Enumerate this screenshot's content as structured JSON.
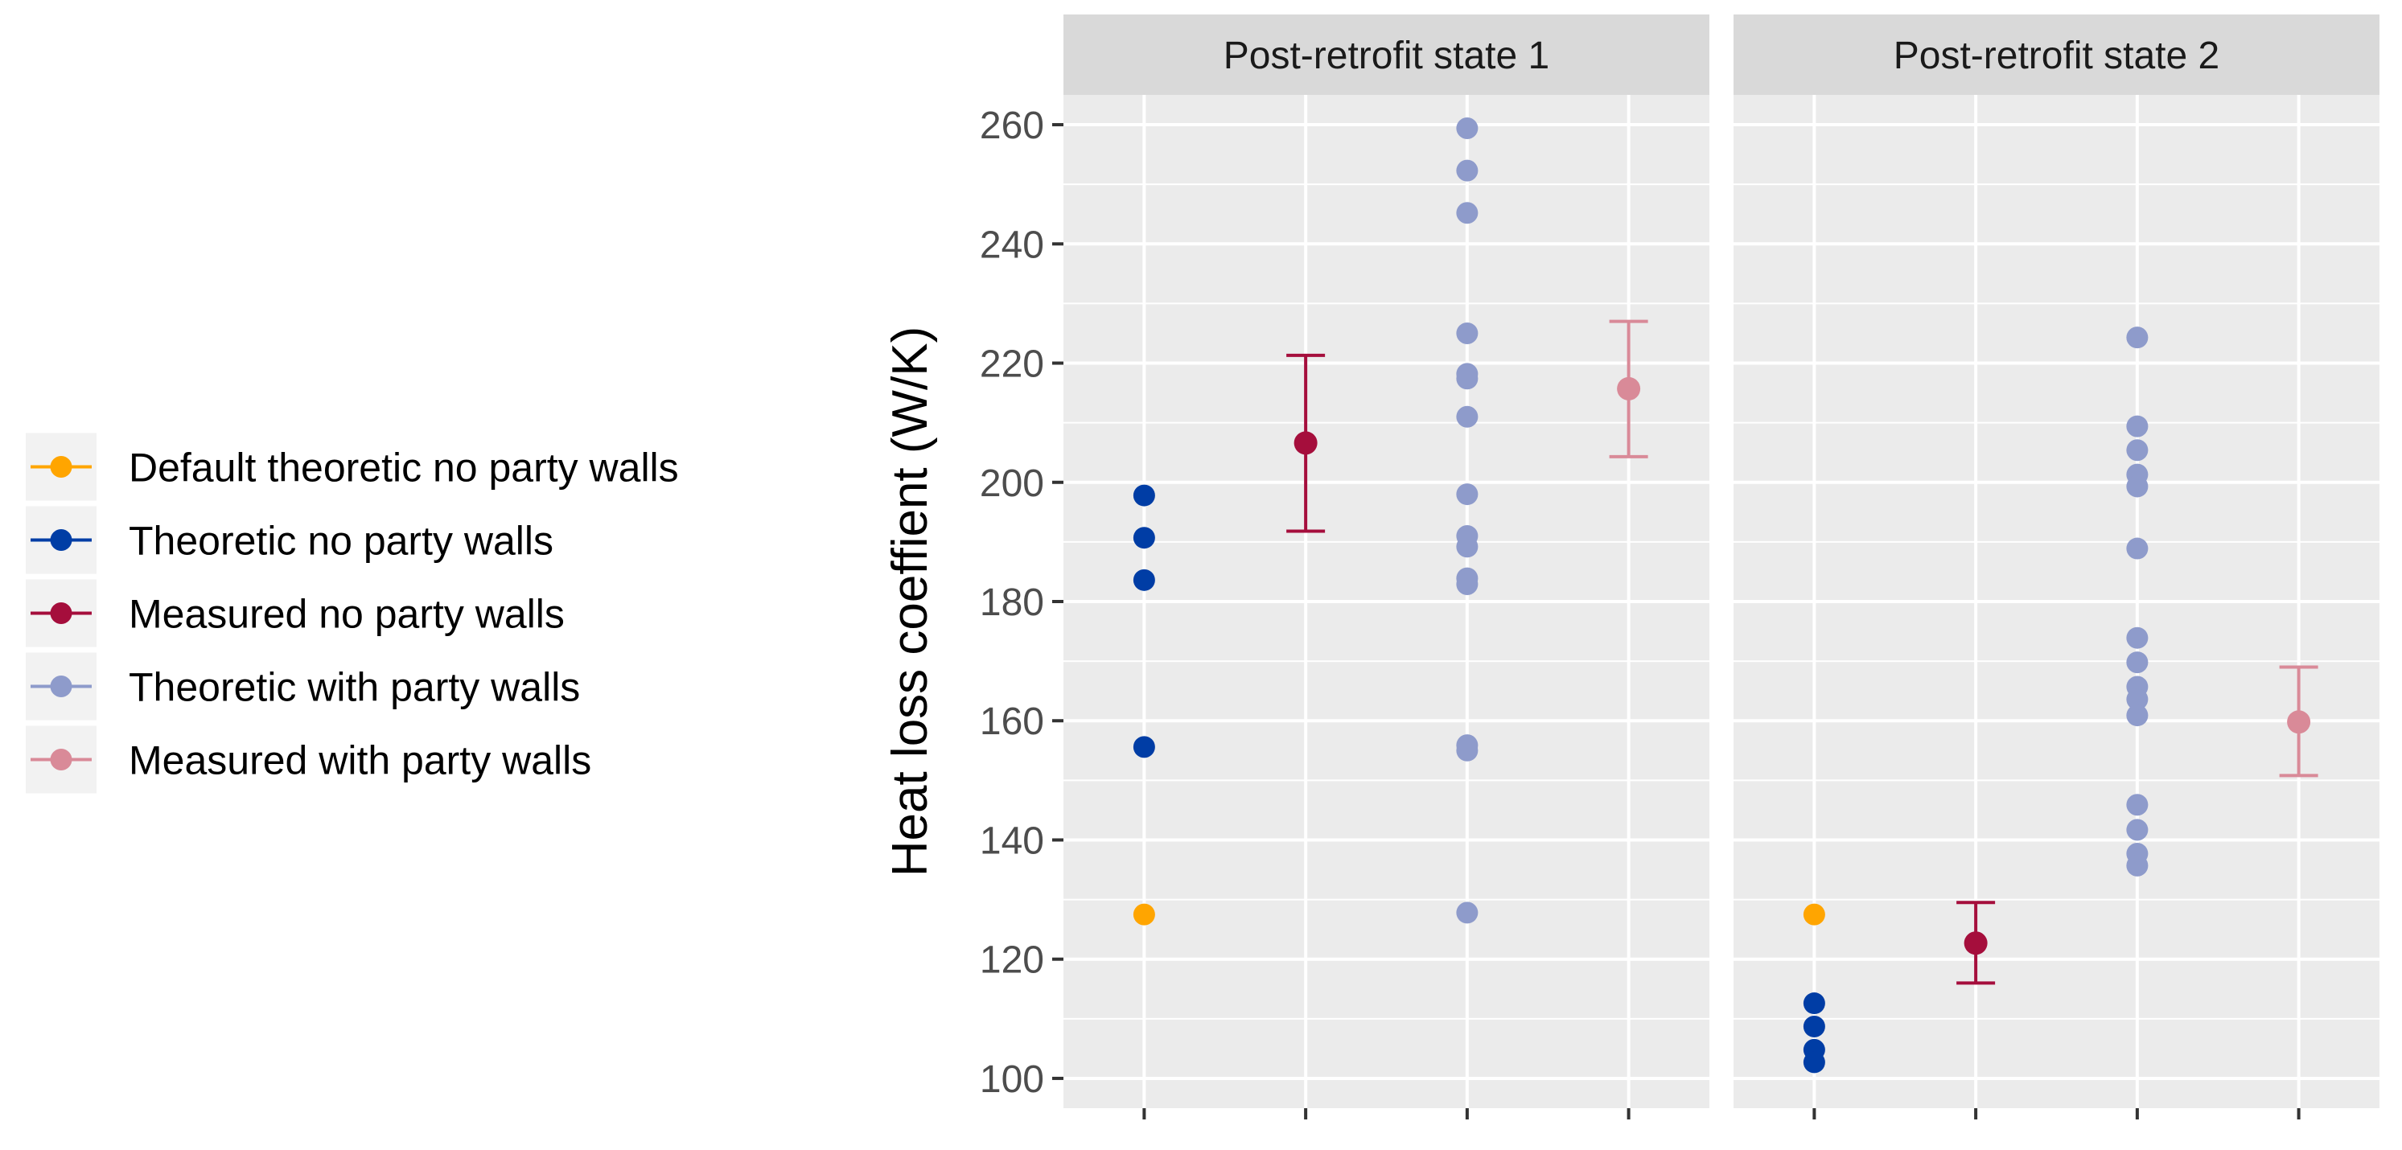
{
  "chart_data": {
    "type": "scatter",
    "ylabel": "Heat loss coeffient (W/K)",
    "xlabel": "",
    "ylim": [
      95,
      265
    ],
    "y_ticks": [
      100,
      120,
      140,
      160,
      180,
      200,
      220,
      240,
      260
    ],
    "grid": true,
    "legend_position": "left",
    "legend": [
      {
        "key": "default_theoretic",
        "label": "Default theoretic no party walls",
        "color": "#FFA500"
      },
      {
        "key": "theoretic_no_party",
        "label": "Theoretic no party walls",
        "color": "#003DA5"
      },
      {
        "key": "measured_no_party",
        "label": "Measured no party walls",
        "color": "#A50E3C"
      },
      {
        "key": "theoretic_with_party",
        "label": "Theoretic with party walls",
        "color": "#8E9BCB"
      },
      {
        "key": "measured_with_party",
        "label": "Measured with party walls",
        "color": "#D98A98"
      }
    ],
    "panels": [
      {
        "title": "Post-retrofit state 1",
        "x_positions": 4,
        "series": [
          {
            "key": "default_theoretic",
            "x": 1,
            "values": [
              127.5
            ]
          },
          {
            "key": "theoretic_no_party",
            "x": 1,
            "values": [
              197.8,
              190.7,
              183.6,
              155.6
            ]
          },
          {
            "key": "measured_no_party",
            "x": 2,
            "point": 206.6,
            "lower": 191.8,
            "upper": 221.3
          },
          {
            "key": "theoretic_with_party",
            "x": 3,
            "values": [
              259.4,
              252.3,
              245.2,
              225,
              218.2,
              217.4,
              211,
              198,
              191,
              189.2,
              183.9,
              182.9,
              155.9,
              155,
              127.8
            ]
          },
          {
            "key": "measured_with_party",
            "x": 4,
            "point": 215.7,
            "lower": 204.3,
            "upper": 227
          }
        ]
      },
      {
        "title": "Post-retrofit state 2",
        "x_positions": 4,
        "series": [
          {
            "key": "default_theoretic",
            "x": 1,
            "values": [
              127.5
            ]
          },
          {
            "key": "theoretic_no_party",
            "x": 1,
            "values": [
              112.6,
              108.7,
              104.8,
              102.7
            ]
          },
          {
            "key": "measured_no_party",
            "x": 2,
            "point": 122.7,
            "lower": 116,
            "upper": 129.5
          },
          {
            "key": "theoretic_with_party",
            "x": 3,
            "values": [
              224.3,
              209.4,
              205.4,
              201.3,
              199.3,
              188.9,
              173.9,
              169.8,
              165.7,
              163.6,
              160.9,
              145.9,
              141.7,
              137.7,
              135.7
            ]
          },
          {
            "key": "measured_with_party",
            "x": 4,
            "point": 159.8,
            "lower": 150.8,
            "upper": 169
          }
        ]
      }
    ]
  }
}
